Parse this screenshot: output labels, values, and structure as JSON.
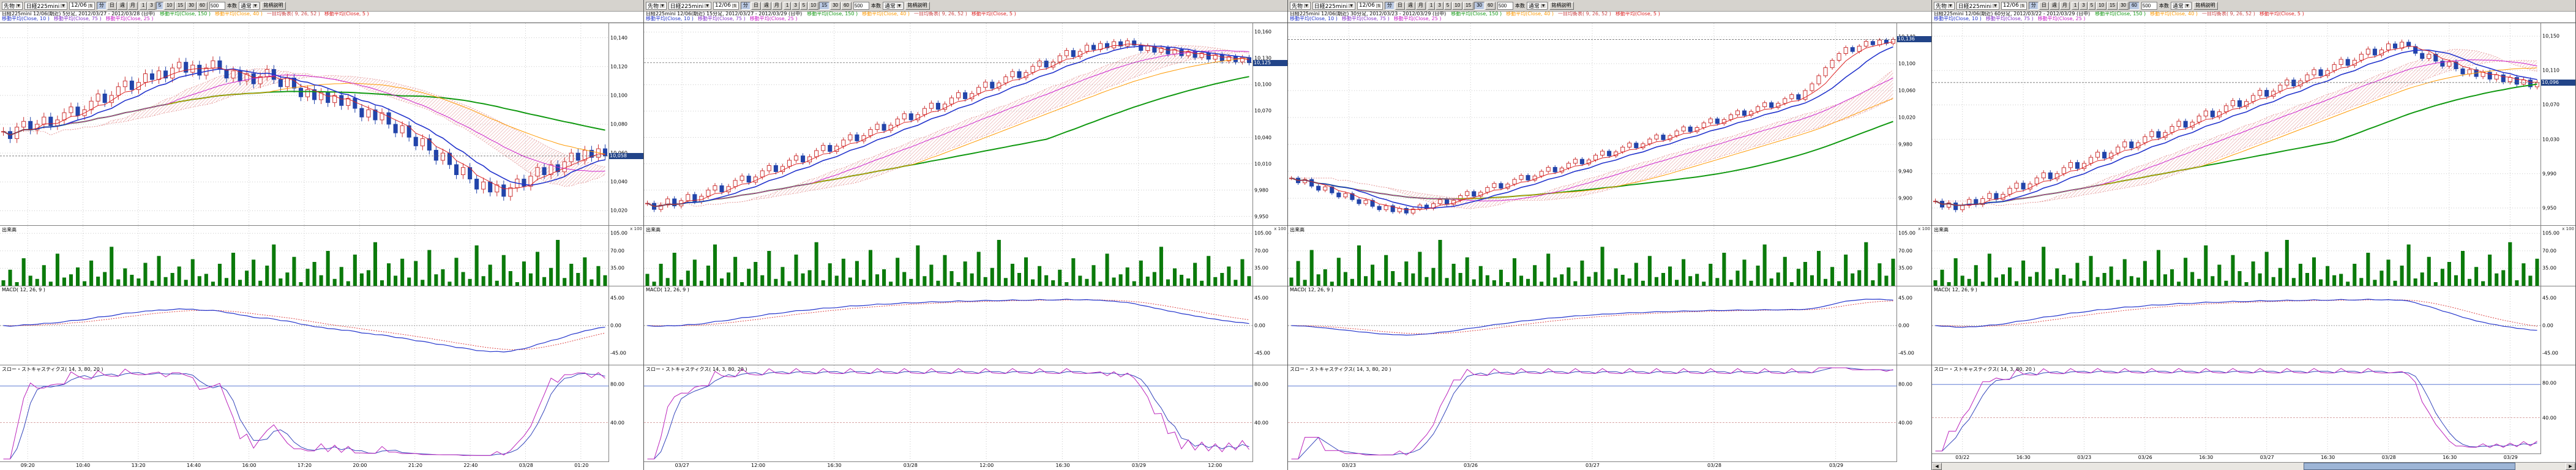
{
  "toolbar": {
    "instrument_type": "先物",
    "instrument": "日経225mini",
    "contract": "12/06",
    "periods": [
      "分",
      "日",
      "週",
      "月"
    ],
    "minutes": [
      "1",
      "3",
      "5",
      "10",
      "15",
      "30",
      "60"
    ],
    "bars_value": "500",
    "bars_label": "本数",
    "display_mode": "通常",
    "info_button": "銘柄説明"
  },
  "icons": {
    "dropdown": "▼",
    "spinner": "⇅",
    "scroll_left": "◀",
    "scroll_right": "▶"
  },
  "pane_labels": {
    "volume": "出来高",
    "volume_unit": "x 100",
    "macd": "MACD( 12, 26, 9 )",
    "stoch": "スロー・ストキャスティクス( 14, 3, 80, 20 )"
  },
  "legend": {
    "line1": [
      {
        "label": "移動平均(Close, 150 )",
        "color": "#119911"
      },
      {
        "label": "移動平均(Close, 40 )",
        "color": "#ff9900"
      },
      {
        "label": "一目均衡表( 9, 26, 52 )",
        "color": "#cc4444"
      },
      {
        "label": "移動平均(Close, 5 )",
        "color": "#dd2222"
      }
    ],
    "line2": [
      {
        "label": "移動平均(Close, 10 )",
        "color": "#2233cc"
      },
      {
        "label": "移動平均(Close, 75 )",
        "color": "#8833cc"
      },
      {
        "label": "移動平均(Close, 25 )",
        "color": "#cc22cc"
      }
    ]
  },
  "axis": {
    "vol_ticks": [
      "105.00",
      "70.00",
      "35.00"
    ],
    "macd_ticks": [
      "45.00",
      "0.00",
      "-45.00"
    ],
    "stoch_ticks": [
      "80.00",
      "40.00"
    ]
  },
  "colors": {
    "up": "#cc3333",
    "down": "#2244aa",
    "ma5": "#dd2222",
    "ma10": "#2233cc",
    "ma25": "#cc22cc",
    "ma40": "#ff9900",
    "ma60": "#119911",
    "cloud": "#e08888",
    "volume": "#0b7a0b",
    "macd_line": "#2233cc",
    "macd_signal": "#dd4444",
    "stoch_k": "#bb22bb",
    "stoch_d": "#3344bb",
    "grid": "#c8c8c8",
    "badge": "#224488"
  },
  "panels": [
    {
      "active_minute": "5",
      "title": "日経225mini 12/06(期近) 5分足, 2012/03/27 - 2012/03/28 (日中)",
      "last_price": "10,058",
      "ymin": 10010,
      "ymax": 10150,
      "main_ticks": [
        "10,140",
        "10,120",
        "10,100",
        "10,080",
        "10,060",
        "10,040",
        "10,020"
      ],
      "x_labels": [
        "09:20",
        "10:40",
        "13:20",
        "14:40",
        "16:00",
        "17:20",
        "20:00",
        "21:20",
        "22:40",
        "03/28",
        "01:20"
      ],
      "has_scrollbar": false,
      "closes": [
        10075,
        10070,
        10078,
        10082,
        10076,
        10080,
        10085,
        10079,
        10083,
        10088,
        10092,
        10086,
        10090,
        10096,
        10101,
        10095,
        10100,
        10106,
        10110,
        10104,
        10109,
        10115,
        10111,
        10117,
        10112,
        10119,
        10123,
        10116,
        10121,
        10114,
        10119,
        10124,
        10118,
        10112,
        10117,
        10110,
        10115,
        10108,
        10113,
        10118,
        10111,
        10106,
        10112,
        10105,
        10099,
        10104,
        10097,
        10102,
        10095,
        10100,
        10093,
        10098,
        10091,
        10085,
        10090,
        10083,
        10088,
        10080,
        10074,
        10079,
        10071,
        10065,
        10070,
        10062,
        10055,
        10060,
        10052,
        10045,
        10050,
        10042,
        10035,
        10040,
        10033,
        10038,
        10030,
        10036,
        10042,
        10037,
        10044,
        10050,
        10045,
        10052,
        10047,
        10054,
        10060,
        10055,
        10062,
        10057,
        10063,
        10058
      ],
      "volumes": [
        12,
        35,
        8,
        60,
        22,
        15,
        45,
        9,
        70,
        18,
        25,
        40,
        10,
        55,
        20,
        30,
        85,
        14,
        38,
        24,
        16,
        50,
        11,
        65,
        19,
        28,
        42,
        13,
        58,
        21,
        26,
        9,
        48,
        17,
        72,
        13,
        33,
        57,
        11,
        44,
        90,
        16,
        29,
        63,
        8,
        37,
        52,
        23,
        76,
        15,
        41,
        10,
        68,
        27,
        34,
        95,
        12,
        49,
        22,
        59,
        18,
        54,
        13,
        78,
        25,
        36,
        9,
        61,
        30,
        15,
        88,
        21,
        46,
        11,
        67,
        32,
        8,
        53,
        27,
        74,
        19,
        39,
        100,
        17,
        48,
        28,
        62,
        14,
        43,
        23
      ]
    },
    {
      "active_minute": "15",
      "title": "日経225mini 12/06(期近) 15分足, 2012/03/27 - 2012/03/29 (日中)",
      "last_price": "10,125",
      "ymin": 9940,
      "ymax": 10170,
      "main_ticks": [
        "10,160",
        "10,130",
        "10,100",
        "10,070",
        "10,040",
        "10,010",
        "9,980",
        "9,950"
      ],
      "x_labels": [
        "03/27",
        "12:00",
        "16:30",
        "03/28",
        "12:00",
        "16:30",
        "03/29",
        "12:00"
      ],
      "has_scrollbar": false,
      "closes": [
        9965,
        9958,
        9963,
        9970,
        9962,
        9968,
        9975,
        9967,
        9973,
        9980,
        9985,
        9978,
        9984,
        9991,
        9996,
        9989,
        9995,
        10002,
        10008,
        10001,
        10007,
        10014,
        10019,
        10012,
        10018,
        10025,
        10031,
        10024,
        10030,
        10037,
        10043,
        10036,
        10042,
        10049,
        10055,
        10048,
        10054,
        10061,
        10067,
        10060,
        10066,
        10073,
        10079,
        10072,
        10078,
        10085,
        10091,
        10084,
        10090,
        10097,
        10103,
        10096,
        10102,
        10109,
        10115,
        10108,
        10114,
        10121,
        10127,
        10120,
        10126,
        10133,
        10139,
        10132,
        10138,
        10145,
        10140,
        10147,
        10142,
        10149,
        10144,
        10150,
        10145,
        10139,
        10144,
        10137,
        10142,
        10135,
        10140,
        10133,
        10138,
        10131,
        10136,
        10129,
        10134,
        10127,
        10132,
        10126,
        10131,
        10125
      ],
      "volumes": [
        26,
        9,
        48,
        17,
        72,
        13,
        33,
        57,
        11,
        44,
        90,
        16,
        29,
        63,
        8,
        37,
        52,
        23,
        76,
        15,
        41,
        10,
        68,
        27,
        34,
        95,
        12,
        49,
        22,
        59,
        18,
        54,
        13,
        78,
        25,
        36,
        9,
        61,
        30,
        15,
        88,
        21,
        46,
        11,
        67,
        32,
        8,
        53,
        27,
        74,
        19,
        39,
        100,
        17,
        48,
        28,
        62,
        14,
        43,
        23,
        12,
        35,
        8,
        60,
        22,
        15,
        45,
        9,
        70,
        18,
        25,
        40,
        10,
        55,
        20,
        30,
        85,
        14,
        38,
        24,
        16,
        50,
        11,
        65,
        19,
        28,
        42,
        13,
        58,
        21
      ]
    },
    {
      "active_minute": "30",
      "title": "日経225mini 12/06(期近) 30分足, 2012/03/23 - 2012/03/29 (日中)",
      "last_price": "10,136",
      "ymin": 9860,
      "ymax": 10160,
      "main_ticks": [
        "10,140",
        "10,100",
        "10,060",
        "10,020",
        "9,980",
        "9,940",
        "9,900"
      ],
      "x_labels": [
        "03/23",
        "03/26",
        "03/27",
        "03/28",
        "03/29"
      ],
      "has_scrollbar": false,
      "closes": [
        9930,
        9923,
        9928,
        9918,
        9912,
        9917,
        9908,
        9902,
        9907,
        9898,
        9892,
        9897,
        9888,
        9883,
        9889,
        9880,
        9885,
        9878,
        9884,
        9890,
        9885,
        9892,
        9898,
        9891,
        9897,
        9904,
        9910,
        9903,
        9909,
        9916,
        9922,
        9915,
        9921,
        9928,
        9934,
        9927,
        9933,
        9940,
        9946,
        9939,
        9945,
        9952,
        9958,
        9951,
        9957,
        9964,
        9970,
        9963,
        9969,
        9976,
        9982,
        9975,
        9981,
        9988,
        9994,
        9987,
        9993,
        10000,
        10006,
        9999,
        10005,
        10012,
        10018,
        10011,
        10017,
        10024,
        10030,
        10023,
        10029,
        10036,
        10042,
        10035,
        10041,
        10048,
        10054,
        10047,
        10060,
        10070,
        10082,
        10094,
        10105,
        10115,
        10124,
        10118,
        10126,
        10133,
        10128,
        10135,
        10130,
        10136
      ],
      "volumes": [
        18,
        54,
        13,
        78,
        25,
        36,
        9,
        61,
        30,
        15,
        88,
        21,
        46,
        11,
        67,
        32,
        8,
        53,
        27,
        74,
        19,
        39,
        100,
        17,
        48,
        28,
        62,
        14,
        43,
        23,
        12,
        35,
        8,
        60,
        22,
        15,
        45,
        9,
        70,
        18,
        25,
        40,
        10,
        55,
        20,
        30,
        85,
        14,
        38,
        24,
        16,
        50,
        11,
        65,
        19,
        28,
        42,
        13,
        58,
        21,
        26,
        9,
        48,
        17,
        72,
        13,
        33,
        57,
        11,
        44,
        90,
        16,
        29,
        63,
        8,
        37,
        52,
        23,
        76,
        15,
        41,
        10,
        68,
        27,
        34,
        95,
        12,
        49,
        22,
        59
      ]
    },
    {
      "active_minute": "60",
      "title": "日経225mini 12/06(期近) 60分足, 2012/03/22 - 2012/03/29 (日中)",
      "last_price": "10,096",
      "ymin": 9930,
      "ymax": 10165,
      "main_ticks": [
        "10,150",
        "10,110",
        "10,070",
        "10,030",
        "9,990",
        "9,950"
      ],
      "x_labels": [
        "03/22",
        "16:30",
        "03/23",
        "03/26",
        "16:30",
        "03/27",
        "16:30",
        "03/28",
        "16:30",
        "03/29"
      ],
      "has_scrollbar": true,
      "closes": [
        9958,
        9951,
        9956,
        9948,
        9953,
        9960,
        9954,
        9961,
        9967,
        9960,
        9966,
        9973,
        9979,
        9972,
        9978,
        9985,
        9991,
        9984,
        9990,
        9997,
        10003,
        9996,
        10002,
        10009,
        10015,
        10008,
        10014,
        10021,
        10027,
        10020,
        10026,
        10033,
        10039,
        10032,
        10038,
        10045,
        10051,
        10044,
        10050,
        10057,
        10063,
        10056,
        10062,
        10069,
        10075,
        10068,
        10074,
        10081,
        10087,
        10080,
        10086,
        10093,
        10099,
        10092,
        10098,
        10105,
        10111,
        10104,
        10110,
        10117,
        10123,
        10116,
        10122,
        10129,
        10135,
        10128,
        10134,
        10141,
        10136,
        10143,
        10138,
        10130,
        10124,
        10129,
        10121,
        10115,
        10120,
        10112,
        10106,
        10111,
        10103,
        10108,
        10100,
        10105,
        10097,
        10102,
        10094,
        10099,
        10091,
        10096
      ],
      "volumes": [
        12,
        35,
        8,
        60,
        22,
        15,
        45,
        9,
        70,
        18,
        25,
        40,
        10,
        55,
        20,
        30,
        85,
        14,
        38,
        24,
        16,
        50,
        11,
        65,
        19,
        28,
        42,
        13,
        58,
        21,
        18,
        54,
        13,
        78,
        25,
        36,
        9,
        61,
        30,
        15,
        88,
        21,
        46,
        11,
        67,
        32,
        8,
        53,
        27,
        74,
        19,
        39,
        100,
        17,
        48,
        28,
        62,
        14,
        43,
        23,
        26,
        9,
        48,
        17,
        72,
        13,
        33,
        57,
        11,
        44,
        90,
        16,
        29,
        63,
        8,
        37,
        52,
        23,
        76,
        15,
        41,
        10,
        68,
        27,
        34,
        95,
        12,
        49,
        22,
        59
      ]
    }
  ]
}
